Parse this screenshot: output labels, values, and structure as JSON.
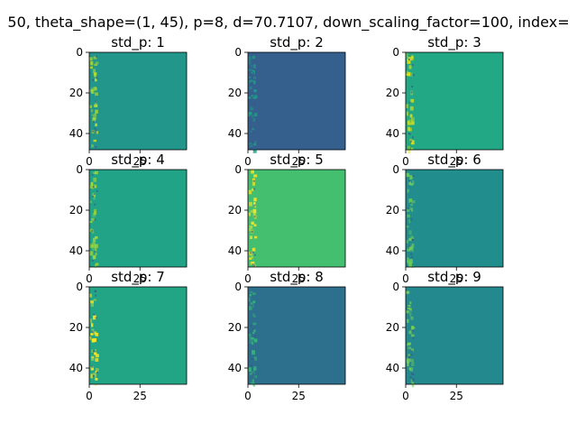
{
  "figure": {
    "suptitle": "50, theta_shape=(1, 45), p=8, d=70.7107, down_scaling_factor=100, index="
  },
  "chart_data": {
    "type": "heatmap",
    "grid": {
      "rows": 3,
      "cols": 3
    },
    "image_extent": {
      "x": [
        0,
        48
      ],
      "y": [
        0,
        48
      ]
    },
    "x_ticks": [
      "0",
      "25"
    ],
    "y_ticks": [
      "0",
      "20",
      "40"
    ],
    "colormap": "viridis",
    "panels": [
      {
        "title": "std_p: 1",
        "base_color": "#22968b",
        "stripe_color": "#b5de2b"
      },
      {
        "title": "std_p: 2",
        "base_color": "#355f8d",
        "stripe_color": "#1fa187"
      },
      {
        "title": "std_p: 3",
        "base_color": "#22a884",
        "stripe_color": "#d8e219"
      },
      {
        "title": "std_p: 4",
        "base_color": "#20a386",
        "stripe_color": "#addc30"
      },
      {
        "title": "std_p: 5",
        "base_color": "#44bf70",
        "stripe_color": "#fde725"
      },
      {
        "title": "std_p: 6",
        "base_color": "#228d8d",
        "stripe_color": "#6ece58"
      },
      {
        "title": "std_p: 7",
        "base_color": "#21a585",
        "stripe_color": "#fde725"
      },
      {
        "title": "std_p: 8",
        "base_color": "#2d708e",
        "stripe_color": "#35b779"
      },
      {
        "title": "std_p: 9",
        "base_color": "#23898e",
        "stripe_color": "#7ad151"
      }
    ]
  }
}
